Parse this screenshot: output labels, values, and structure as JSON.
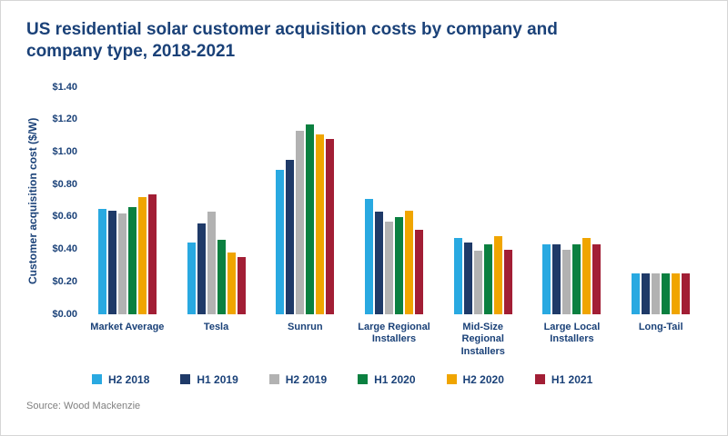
{
  "title": "US residential solar customer acquisition costs by company and company type, 2018-2021",
  "source": "Source: Wood Mackenzie",
  "colors": {
    "title_navy": "#1a4178",
    "axis_text": "#1a4178",
    "source_gray": "#7f7f7f",
    "background": "#ffffff"
  },
  "chart_data": {
    "type": "bar",
    "title": "US residential solar customer acquisition costs by company and company type, 2018-2021",
    "xlabel": "",
    "ylabel": "Customer acquisition cost ($/W)",
    "ylim": [
      0,
      1.4
    ],
    "y_ticks": [
      "$0.00",
      "$0.20",
      "$0.40",
      "$0.60",
      "$0.80",
      "$1.00",
      "$1.20",
      "$1.40"
    ],
    "grid": false,
    "legend_position": "bottom",
    "categories": [
      "Market Average",
      "Tesla",
      "Sunrun",
      "Large Regional Installers",
      "Mid-Size Regional Installers",
      "Large Local Installers",
      "Long-Tail"
    ],
    "category_label_lines": [
      [
        "Market Average"
      ],
      [
        "Tesla"
      ],
      [
        "Sunrun"
      ],
      [
        "Large Regional",
        "Installers"
      ],
      [
        "Mid-Size",
        "Regional",
        "Installers"
      ],
      [
        "Large Local",
        "Installers"
      ],
      [
        "Long-Tail"
      ]
    ],
    "series": [
      {
        "name": "H2 2018",
        "color": "#29a9e1",
        "values": [
          0.65,
          0.44,
          0.89,
          0.71,
          0.47,
          0.43,
          0.25
        ]
      },
      {
        "name": "H1 2019",
        "color": "#1f3a68",
        "values": [
          0.64,
          0.56,
          0.95,
          0.63,
          0.44,
          0.43,
          0.25
        ]
      },
      {
        "name": "H2 2019",
        "color": "#b2b2b2",
        "values": [
          0.62,
          0.63,
          1.13,
          0.57,
          0.39,
          0.4,
          0.25
        ]
      },
      {
        "name": "H1 2020",
        "color": "#0b8040",
        "values": [
          0.66,
          0.46,
          1.17,
          0.6,
          0.43,
          0.43,
          0.25
        ]
      },
      {
        "name": "H2 2020",
        "color": "#f0a500",
        "values": [
          0.72,
          0.38,
          1.11,
          0.64,
          0.48,
          0.47,
          0.25
        ]
      },
      {
        "name": "H1 2021",
        "color": "#a21e35",
        "values": [
          0.74,
          0.35,
          1.08,
          0.52,
          0.4,
          0.43,
          0.25
        ]
      }
    ]
  }
}
